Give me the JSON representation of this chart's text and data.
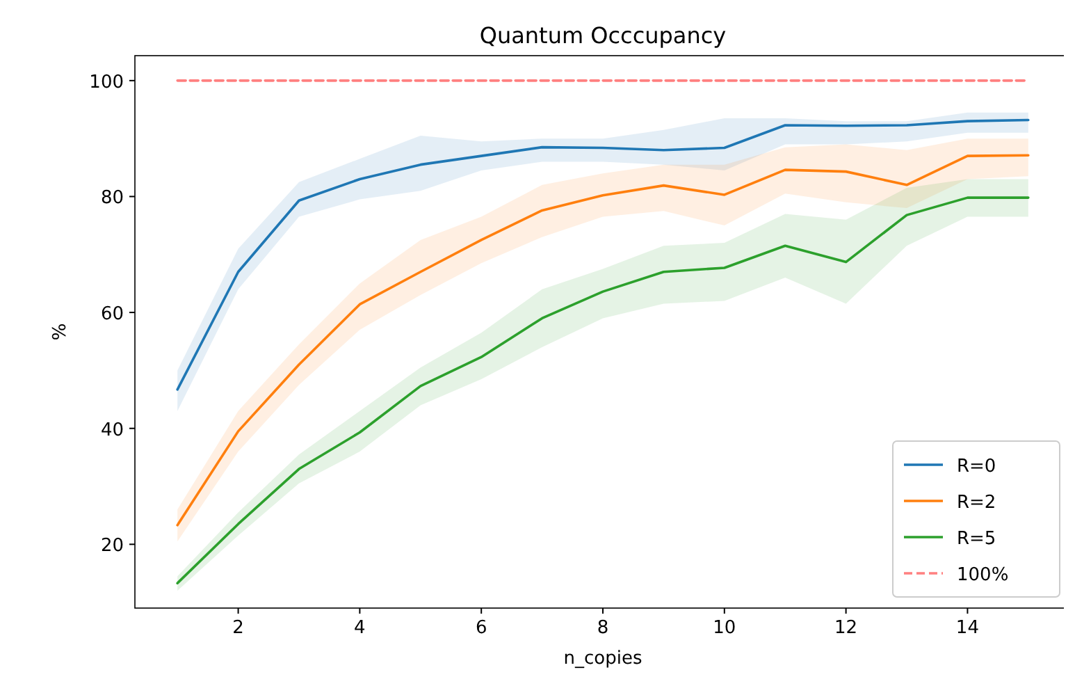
{
  "chart_data": {
    "type": "line",
    "title": "Quantum Occcupancy",
    "xlabel": "n_copies",
    "ylabel": "%",
    "x": [
      1,
      2,
      3,
      4,
      5,
      6,
      7,
      8,
      9,
      10,
      11,
      12,
      13,
      14,
      15
    ],
    "xlim": [
      0.3,
      15.7
    ],
    "ylim": [
      9,
      104.3
    ],
    "xticks": [
      2,
      4,
      6,
      8,
      10,
      12,
      14
    ],
    "yticks": [
      20,
      40,
      60,
      80,
      100
    ],
    "grid": false,
    "legend": "bottom right",
    "series": [
      {
        "name": "R=0",
        "color": "#1f77b4",
        "values": [
          46.7,
          67,
          79.3,
          83,
          85.5,
          87,
          88.5,
          88.4,
          88,
          88.4,
          92.3,
          92.2,
          92.3,
          93,
          93.2
        ],
        "lower": [
          43,
          64,
          76.5,
          79.5,
          81,
          84.5,
          86,
          86,
          85.5,
          84.5,
          89,
          89,
          89.5,
          91,
          91
        ],
        "upper": [
          50,
          71,
          82.5,
          86.5,
          90.5,
          89.5,
          90,
          90,
          91.5,
          93.5,
          93.5,
          93,
          93,
          94.5,
          94.5
        ]
      },
      {
        "name": "R=2",
        "color": "#ff7f0e",
        "values": [
          23.3,
          39.5,
          51,
          61.4,
          67,
          72.5,
          77.6,
          80.2,
          81.9,
          80.3,
          84.6,
          84.3,
          82,
          87,
          87.1
        ],
        "lower": [
          20.5,
          36,
          47.5,
          57,
          63,
          68.5,
          73,
          76.5,
          77.5,
          75,
          80.5,
          79,
          78,
          83,
          83.5
        ],
        "upper": [
          26,
          43,
          54.5,
          65,
          72.5,
          76.5,
          82,
          84,
          85.5,
          85.5,
          88.5,
          89,
          88,
          90,
          90
        ]
      },
      {
        "name": "R=5",
        "color": "#2ca02c",
        "values": [
          13.3,
          23.5,
          33,
          39.3,
          47.3,
          52.3,
          59,
          63.6,
          67,
          67.7,
          71.5,
          68.7,
          76.8,
          79.8,
          79.8
        ],
        "lower": [
          12,
          21.5,
          30.5,
          36,
          44,
          48.5,
          54,
          59,
          61.5,
          62,
          66,
          61.5,
          71.5,
          76.5,
          76.5
        ],
        "upper": [
          14.5,
          25.5,
          35.5,
          43,
          50.5,
          56.5,
          64,
          67.5,
          71.5,
          72,
          77,
          76,
          81.5,
          83,
          83
        ]
      },
      {
        "name": "100%",
        "color": "#ff8080",
        "line_style": "dashed",
        "values": [
          100,
          100,
          100,
          100,
          100,
          100,
          100,
          100,
          100,
          100,
          100,
          100,
          100,
          100,
          100
        ]
      }
    ]
  }
}
